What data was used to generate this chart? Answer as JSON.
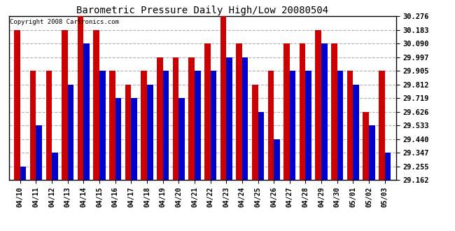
{
  "title": "Barometric Pressure Daily High/Low 20080504",
  "copyright": "Copyright 2008 Cartronics.com",
  "categories": [
    "04/10",
    "04/11",
    "04/12",
    "04/13",
    "04/14",
    "04/15",
    "04/16",
    "04/17",
    "04/18",
    "04/19",
    "04/20",
    "04/21",
    "04/22",
    "04/23",
    "04/24",
    "04/25",
    "04/26",
    "04/27",
    "04/28",
    "04/29",
    "04/30",
    "05/01",
    "05/02",
    "05/03"
  ],
  "highs": [
    30.183,
    29.905,
    29.905,
    30.183,
    30.276,
    30.183,
    29.905,
    29.812,
    29.905,
    29.997,
    29.997,
    29.997,
    30.09,
    30.276,
    30.09,
    29.812,
    29.905,
    30.09,
    30.09,
    30.183,
    30.09,
    29.905,
    29.626,
    29.905
  ],
  "lows": [
    29.255,
    29.533,
    29.347,
    29.812,
    30.09,
    29.905,
    29.719,
    29.719,
    29.812,
    29.905,
    29.719,
    29.905,
    29.905,
    29.997,
    29.997,
    29.626,
    29.44,
    29.905,
    29.905,
    30.09,
    29.905,
    29.812,
    29.533,
    29.347
  ],
  "high_color": "#cc0000",
  "low_color": "#0000cc",
  "bg_color": "#ffffff",
  "grid_color": "#b0b0b0",
  "yticks": [
    29.162,
    29.255,
    29.347,
    29.44,
    29.533,
    29.626,
    29.719,
    29.812,
    29.905,
    29.997,
    30.09,
    30.183,
    30.276
  ],
  "ymin": 29.162,
  "ymax": 30.276,
  "bar_width": 0.38
}
